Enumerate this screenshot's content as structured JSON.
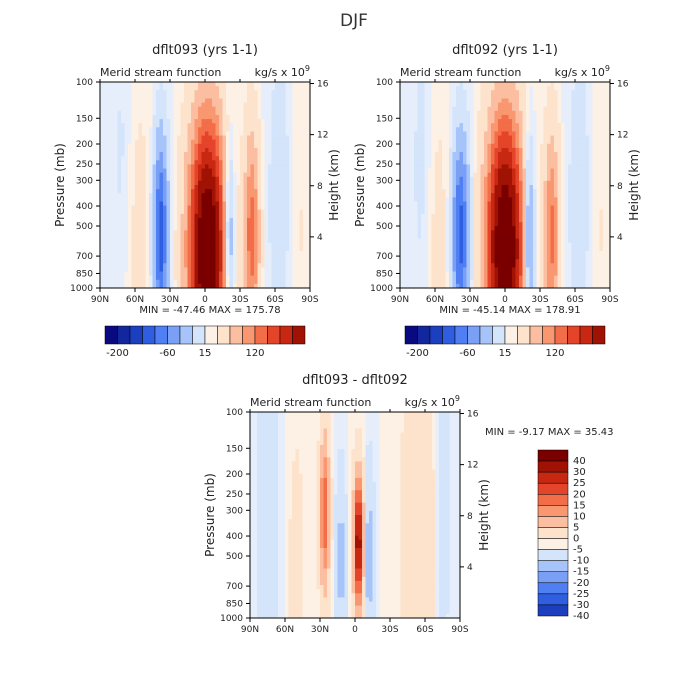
{
  "page_title": "DJF",
  "colors": {
    "blue_scale": [
      "#0a0a80",
      "#12279e",
      "#1c3fc0",
      "#2f5ee0",
      "#4f7ff2",
      "#7aa0f6",
      "#a6c4fa",
      "#d3e4fb"
    ],
    "red_scale": [
      "#fde2cc",
      "#fbbea0",
      "#f89770",
      "#f26d48",
      "#e4452a",
      "#c82812",
      "#a01304",
      "#7a0000"
    ]
  },
  "chart_data": [
    {
      "type": "heatmap",
      "title": "dflt093 (yrs 1-1)",
      "subtitle_left": "Merid stream function",
      "subtitle_right": "kg/s x 10",
      "subtitle_right_exp": "9",
      "ylabel": "Pressure (mb)",
      "ylabel_right": "Height (km)",
      "x_ticks": [
        "90N",
        "60N",
        "30N",
        "0",
        "30S",
        "60S",
        "90S"
      ],
      "y_ticks": [
        "100",
        "150",
        "200",
        "250",
        "300",
        "400",
        "500",
        "700",
        "850",
        "1000"
      ],
      "y_right_ticks": [
        "16",
        "12",
        "8",
        "4"
      ],
      "x_range": [
        90,
        -90
      ],
      "y_range": [
        100,
        1000
      ],
      "y_scale": "log",
      "min_text": "MIN = -47.46",
      "max_text": "MAX = 175.78",
      "colorbar_labels": [
        "-200",
        "-60",
        "15",
        "120"
      ],
      "field_features": [
        {
          "lat": -2,
          "p": 650,
          "wlat": 14,
          "wlogp": 0.55,
          "amp": 176
        },
        {
          "lat": 38,
          "p": 550,
          "wlat": 6,
          "wlogp": 0.45,
          "amp": -47
        },
        {
          "lat": -20,
          "p": 600,
          "wlat": 5,
          "wlogp": 0.45,
          "amp": -40
        },
        {
          "lat": -40,
          "p": 560,
          "wlat": 6,
          "wlogp": 0.45,
          "amp": 55
        },
        {
          "lat": 60,
          "p": 500,
          "wlat": 14,
          "wlogp": 0.8,
          "amp": 6
        },
        {
          "lat": 70,
          "p": 300,
          "wlat": 10,
          "wlogp": 0.8,
          "amp": -6
        },
        {
          "lat": -65,
          "p": 400,
          "wlat": 12,
          "wlogp": 0.9,
          "amp": -6
        },
        {
          "lat": -80,
          "p": 500,
          "wlat": 10,
          "wlogp": 0.8,
          "amp": 4
        }
      ]
    },
    {
      "type": "heatmap",
      "title": "dflt092 (yrs 1-1)",
      "subtitle_left": "Merid stream function",
      "subtitle_right": "kg/s x 10",
      "subtitle_right_exp": "9",
      "ylabel": "Pressure (mb)",
      "ylabel_right": "Height (km)",
      "x_ticks": [
        "90N",
        "60N",
        "30N",
        "0",
        "30S",
        "60S",
        "90S"
      ],
      "y_ticks": [
        "100",
        "150",
        "200",
        "250",
        "300",
        "400",
        "500",
        "700",
        "850",
        "1000"
      ],
      "y_right_ticks": [
        "16",
        "12",
        "8",
        "4"
      ],
      "x_range": [
        90,
        -90
      ],
      "y_range": [
        100,
        1000
      ],
      "y_scale": "log",
      "min_text": "MIN = -45.14",
      "max_text": "MAX = 178.91",
      "colorbar_labels": [
        "-200",
        "-60",
        "15",
        "120"
      ],
      "field_features": [
        {
          "lat": 0,
          "p": 640,
          "wlat": 14,
          "wlogp": 0.55,
          "amp": 179
        },
        {
          "lat": 38,
          "p": 550,
          "wlat": 7,
          "wlogp": 0.45,
          "amp": -45
        },
        {
          "lat": -20,
          "p": 600,
          "wlat": 5,
          "wlogp": 0.45,
          "amp": -38
        },
        {
          "lat": -40,
          "p": 560,
          "wlat": 6,
          "wlogp": 0.45,
          "amp": 50
        },
        {
          "lat": 60,
          "p": 550,
          "wlat": 12,
          "wlogp": 0.8,
          "amp": 6
        },
        {
          "lat": 70,
          "p": 300,
          "wlat": 10,
          "wlogp": 0.8,
          "amp": -6
        },
        {
          "lat": -65,
          "p": 400,
          "wlat": 12,
          "wlogp": 0.9,
          "amp": -6
        },
        {
          "lat": -80,
          "p": 500,
          "wlat": 10,
          "wlogp": 0.8,
          "amp": 4
        }
      ]
    },
    {
      "type": "heatmap",
      "title": "dflt093 - dflt092",
      "subtitle_left": "Merid stream function",
      "subtitle_right": "kg/s x 10",
      "subtitle_right_exp": "9",
      "ylabel": "Pressure (mb)",
      "ylabel_right": "Height (km)",
      "x_ticks": [
        "90N",
        "60N",
        "30N",
        "0",
        "30S",
        "60S",
        "90S"
      ],
      "y_ticks": [
        "100",
        "150",
        "200",
        "250",
        "300",
        "400",
        "500",
        "700",
        "850",
        "1000"
      ],
      "y_right_ticks": [
        "16",
        "12",
        "8",
        "4"
      ],
      "x_range": [
        90,
        -90
      ],
      "y_range": [
        100,
        1000
      ],
      "y_scale": "log",
      "min_text": "MIN = -9.17",
      "max_text": "MAX = 35.43",
      "colorbar_labels": [
        "40",
        "30",
        "25",
        "20",
        "15",
        "10",
        "5",
        "0",
        "-5",
        "-10",
        "-15",
        "-20",
        "-25",
        "-30",
        "-40"
      ],
      "field_features": [
        {
          "lat": -3,
          "p": 430,
          "wlat": 4,
          "wlogp": 0.3,
          "amp": 35
        },
        {
          "lat": 26,
          "p": 310,
          "wlat": 4,
          "wlogp": 0.35,
          "amp": 19
        },
        {
          "lat": -12,
          "p": 500,
          "wlat": 4,
          "wlogp": 0.4,
          "amp": -8
        },
        {
          "lat": 12,
          "p": 520,
          "wlat": 4,
          "wlogp": 0.4,
          "amp": -7
        },
        {
          "lat": 75,
          "p": 400,
          "wlat": 8,
          "wlogp": 0.9,
          "amp": -5
        },
        {
          "lat": -55,
          "p": 400,
          "wlat": 14,
          "wlogp": 0.9,
          "amp": 4
        },
        {
          "lat": 50,
          "p": 650,
          "wlat": 6,
          "wlogp": 0.6,
          "amp": 3
        },
        {
          "lat": -75,
          "p": 300,
          "wlat": 6,
          "wlogp": 0.8,
          "amp": -3
        }
      ]
    }
  ]
}
